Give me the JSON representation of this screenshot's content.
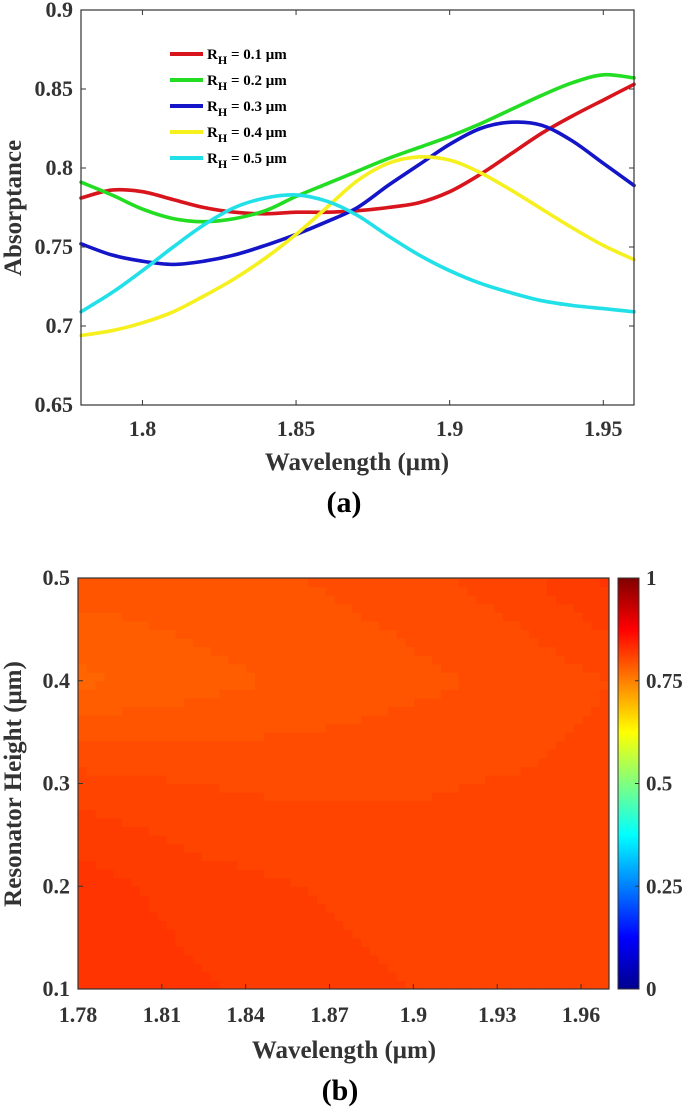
{
  "chart_data": [
    {
      "type": "line",
      "panel_label": "(a)",
      "xlabel": "Wavelength (μm)",
      "ylabel": "Absorptance",
      "xlim": [
        1.78,
        1.96
      ],
      "ylim": [
        0.65,
        0.9
      ],
      "xticks": [
        "1.8",
        "1.85",
        "1.9",
        "1.95"
      ],
      "yticks": [
        "0.65",
        "0.7",
        "0.75",
        "0.8",
        "0.85",
        "0.9"
      ],
      "grid": false,
      "legend_position": "top-left",
      "x": [
        1.78,
        1.79,
        1.8,
        1.81,
        1.82,
        1.83,
        1.84,
        1.85,
        1.86,
        1.87,
        1.88,
        1.89,
        1.9,
        1.91,
        1.92,
        1.93,
        1.94,
        1.95,
        1.96
      ],
      "series": [
        {
          "name": "R_H = 0.1 μm",
          "label_main": "R",
          "label_sub": "H",
          "label_rest": " = 0.1 μm",
          "color": "#d8141c",
          "values": [
            0.781,
            0.786,
            0.785,
            0.78,
            0.775,
            0.772,
            0.771,
            0.772,
            0.772,
            0.773,
            0.775,
            0.778,
            0.785,
            0.796,
            0.809,
            0.822,
            0.833,
            0.843,
            0.853
          ]
        },
        {
          "name": "R_H = 0.2 μm",
          "label_main": "R",
          "label_sub": "H",
          "label_rest": " = 0.2 μm",
          "color": "#22dd22",
          "values": [
            0.791,
            0.783,
            0.774,
            0.768,
            0.766,
            0.768,
            0.773,
            0.782,
            0.79,
            0.798,
            0.806,
            0.813,
            0.82,
            0.828,
            0.837,
            0.846,
            0.854,
            0.859,
            0.857
          ]
        },
        {
          "name": "R_H = 0.3 μm",
          "label_main": "R",
          "label_sub": "H",
          "label_rest": " = 0.3 μm",
          "color": "#1414c8",
          "values": [
            0.752,
            0.745,
            0.741,
            0.739,
            0.741,
            0.745,
            0.751,
            0.758,
            0.766,
            0.775,
            0.789,
            0.802,
            0.815,
            0.825,
            0.829,
            0.827,
            0.817,
            0.803,
            0.789
          ]
        },
        {
          "name": "R_H = 0.4 μm",
          "label_main": "R",
          "label_sub": "H",
          "label_rest": " = 0.4 μm",
          "color": "#f5f01e",
          "values": [
            0.694,
            0.697,
            0.702,
            0.709,
            0.719,
            0.73,
            0.743,
            0.758,
            0.775,
            0.792,
            0.803,
            0.807,
            0.805,
            0.797,
            0.786,
            0.774,
            0.762,
            0.751,
            0.742
          ]
        },
        {
          "name": "R_H = 0.5 μm",
          "label_main": "R",
          "label_sub": "H",
          "label_rest": " = 0.5 μm",
          "color": "#22e0e8",
          "values": [
            0.709,
            0.721,
            0.735,
            0.75,
            0.764,
            0.775,
            0.781,
            0.783,
            0.779,
            0.77,
            0.757,
            0.745,
            0.735,
            0.727,
            0.721,
            0.716,
            0.713,
            0.711,
            0.709
          ]
        }
      ]
    },
    {
      "type": "heatmap",
      "panel_label": "(b)",
      "xlabel": "Wavelength (μm)",
      "ylabel": "Resonator Height (μm)",
      "xlim": [
        1.78,
        1.97
      ],
      "ylim": [
        0.1,
        0.5
      ],
      "xticks": [
        "1.78",
        "1.81",
        "1.84",
        "1.87",
        "1.9",
        "1.93",
        "1.96"
      ],
      "yticks": [
        "0.1",
        "0.2",
        "0.3",
        "0.4",
        "0.5"
      ],
      "colorbar": {
        "range": [
          0,
          1
        ],
        "ticks": [
          "0",
          "0.25",
          "0.5",
          "0.75",
          "1"
        ],
        "colormap": "jet"
      },
      "x": [
        1.78,
        1.82,
        1.86,
        1.9,
        1.94,
        1.97
      ],
      "y": [
        0.1,
        0.2,
        0.3,
        0.4,
        0.5
      ],
      "z": [
        [
          0.828,
          0.822,
          0.816,
          0.812,
          0.81,
          0.81
        ],
        [
          0.825,
          0.816,
          0.812,
          0.808,
          0.81,
          0.812
        ],
        [
          0.808,
          0.804,
          0.802,
          0.803,
          0.805,
          0.808
        ],
        [
          0.778,
          0.784,
          0.79,
          0.794,
          0.798,
          0.804
        ],
        [
          0.792,
          0.794,
          0.796,
          0.8,
          0.81,
          0.822
        ]
      ]
    }
  ]
}
